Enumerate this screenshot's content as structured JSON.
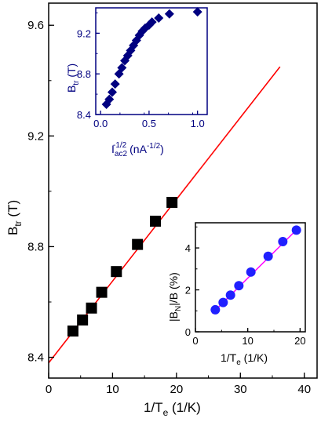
{
  "colors": {
    "main_marker": "#000000",
    "main_fit": "#ff0000",
    "inset_top_color": "#000080",
    "inset_top_marker": "#000080",
    "inset_bottom_marker": "#2020ff",
    "inset_bottom_fit": "#ff00ff"
  },
  "chart_data": [
    {
      "id": "main",
      "type": "scatter",
      "xlabel": {
        "main": "1/T",
        "sub": "e",
        "unit": " (1/K)"
      },
      "ylabel": {
        "main": "B",
        "sub": "tr",
        "unit": " (T)"
      },
      "xlim": [
        0,
        42
      ],
      "ylim": [
        8.325,
        9.68
      ],
      "xticks": [
        0,
        10,
        20,
        30,
        40
      ],
      "yticks": [
        8.4,
        8.8,
        9.2,
        9.6
      ],
      "ytick_labels": [
        "8.4",
        "8.8",
        "9.2",
        "9.6"
      ],
      "marker": "square",
      "points": [
        {
          "x": 3.8,
          "y": 8.495
        },
        {
          "x": 5.3,
          "y": 8.535
        },
        {
          "x": 6.7,
          "y": 8.578
        },
        {
          "x": 8.3,
          "y": 8.635
        },
        {
          "x": 10.6,
          "y": 8.71
        },
        {
          "x": 13.9,
          "y": 8.808
        },
        {
          "x": 16.7,
          "y": 8.892
        },
        {
          "x": 19.3,
          "y": 8.96
        }
      ],
      "fit_line": {
        "x": [
          0,
          36.2
        ],
        "y": [
          8.38,
          9.45
        ]
      }
    },
    {
      "id": "inset_top",
      "type": "scatter",
      "xlabel": {
        "main": "I",
        "sub": "ac2",
        "sup": "-1/2",
        "unit": " (nA",
        "unit_sup": "-1/2",
        "unit_end": ")"
      },
      "ylabel": {
        "main": "B",
        "sub": "tr",
        "unit": " (T)"
      },
      "xlim": [
        -0.05,
        1.1
      ],
      "ylim": [
        8.4,
        9.45
      ],
      "xticks": [
        0.0,
        0.5,
        1.0
      ],
      "xtick_labels": [
        "0.0",
        "0.5",
        "1.0"
      ],
      "yticks": [
        8.4,
        8.8,
        9.2
      ],
      "ytick_labels": [
        "8.4",
        "8.8",
        "9.2"
      ],
      "marker": "diamond",
      "points": [
        {
          "x": 0.06,
          "y": 8.5
        },
        {
          "x": 0.09,
          "y": 8.55
        },
        {
          "x": 0.12,
          "y": 8.62
        },
        {
          "x": 0.15,
          "y": 8.7
        },
        {
          "x": 0.19,
          "y": 8.8
        },
        {
          "x": 0.22,
          "y": 8.86
        },
        {
          "x": 0.25,
          "y": 8.93
        },
        {
          "x": 0.28,
          "y": 8.98
        },
        {
          "x": 0.31,
          "y": 9.03
        },
        {
          "x": 0.34,
          "y": 9.08
        },
        {
          "x": 0.37,
          "y": 9.13
        },
        {
          "x": 0.4,
          "y": 9.18
        },
        {
          "x": 0.43,
          "y": 9.22
        },
        {
          "x": 0.46,
          "y": 9.25
        },
        {
          "x": 0.5,
          "y": 9.28
        },
        {
          "x": 0.53,
          "y": 9.31
        },
        {
          "x": 0.6,
          "y": 9.35
        },
        {
          "x": 0.71,
          "y": 9.39
        },
        {
          "x": 1.0,
          "y": 9.41
        }
      ]
    },
    {
      "id": "inset_bottom",
      "type": "scatter",
      "xlabel": {
        "main": "1/T",
        "sub": "e",
        "unit": " (1/K)"
      },
      "ylabel": {
        "text": "|B",
        "sub": "N",
        "unit": "|/B (%)"
      },
      "xlim": [
        0,
        21
      ],
      "ylim": [
        0,
        5.2
      ],
      "xticks": [
        0,
        10,
        20
      ],
      "yticks": [
        0,
        2,
        4
      ],
      "marker": "circle",
      "points": [
        {
          "x": 3.8,
          "y": 1.05
        },
        {
          "x": 5.3,
          "y": 1.4
        },
        {
          "x": 6.7,
          "y": 1.75
        },
        {
          "x": 8.3,
          "y": 2.2
        },
        {
          "x": 10.6,
          "y": 2.85
        },
        {
          "x": 13.9,
          "y": 3.6
        },
        {
          "x": 16.7,
          "y": 4.3
        },
        {
          "x": 19.3,
          "y": 4.85
        }
      ],
      "fit_line": {
        "x": [
          3.2,
          19.8
        ],
        "y": [
          0.88,
          4.98
        ]
      }
    }
  ]
}
